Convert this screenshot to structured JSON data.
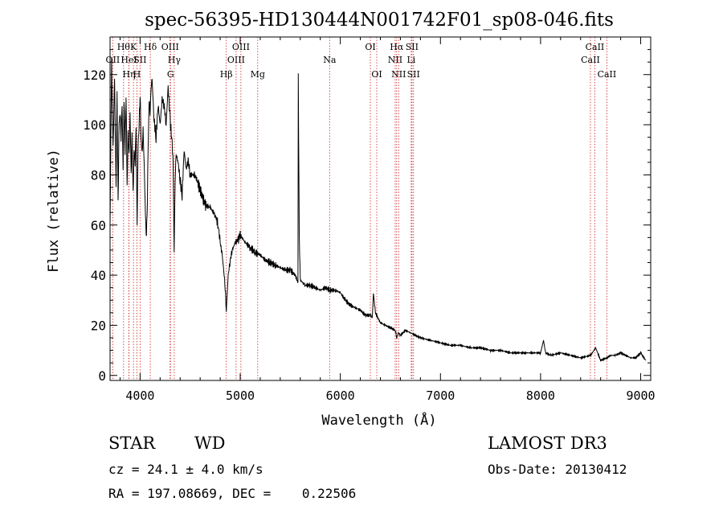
{
  "chart_data": {
    "type": "line",
    "title": "spec-56395-HD130444N001742F01_sp08-046.fits",
    "xlabel": "Wavelength (Å)",
    "ylabel": "Flux (relative)",
    "xlim": [
      3700,
      9100
    ],
    "ylim": [
      -2,
      135
    ],
    "xticks": [
      4000,
      5000,
      6000,
      7000,
      8000,
      9000
    ],
    "xtick_labels": [
      "4000",
      "5000",
      "6000",
      "7000",
      "8000",
      "9000"
    ],
    "yticks": [
      0,
      20,
      40,
      60,
      80,
      100,
      120
    ],
    "ytick_labels": [
      "0",
      "20",
      "40",
      "60",
      "80",
      "100",
      "120"
    ],
    "grid": false,
    "series": [
      {
        "name": "flux",
        "x": [
          3700,
          3715,
          3730,
          3745,
          3760,
          3770,
          3780,
          3790,
          3800,
          3810,
          3820,
          3830,
          3840,
          3850,
          3860,
          3870,
          3880,
          3890,
          3900,
          3910,
          3920,
          3930,
          3940,
          3950,
          3960,
          3970,
          3980,
          3990,
          4000,
          4010,
          4020,
          4030,
          4040,
          4050,
          4060,
          4070,
          4080,
          4090,
          4100,
          4110,
          4120,
          4140,
          4160,
          4180,
          4200,
          4220,
          4240,
          4260,
          4280,
          4300,
          4320,
          4330,
          4340,
          4350,
          4360,
          4380,
          4400,
          4420,
          4440,
          4460,
          4480,
          4500,
          4550,
          4600,
          4650,
          4700,
          4750,
          4780,
          4800,
          4820,
          4840,
          4850,
          4861,
          4870,
          4880,
          4900,
          4920,
          4950,
          4980,
          5000,
          5050,
          5100,
          5150,
          5200,
          5250,
          5300,
          5350,
          5400,
          5450,
          5500,
          5550,
          5577,
          5580,
          5590,
          5600,
          5650,
          5700,
          5750,
          5800,
          5850,
          5900,
          5950,
          6000,
          6050,
          6100,
          6150,
          6200,
          6250,
          6300,
          6320,
          6330,
          6350,
          6400,
          6450,
          6500,
          6550,
          6563,
          6580,
          6600,
          6650,
          6700,
          6750,
          6800,
          6900,
          7000,
          7100,
          7200,
          7300,
          7400,
          7500,
          7600,
          7700,
          7800,
          7900,
          8000,
          8030,
          8050,
          8100,
          8200,
          8300,
          8400,
          8500,
          8550,
          8600,
          8662,
          8700,
          8750,
          8800,
          8850,
          8900,
          8950,
          9000,
          9050
        ],
        "values": [
          60,
          125,
          90,
          118,
          75,
          112,
          68,
          100,
          105,
          95,
          108,
          82,
          110,
          90,
          112,
          75,
          96,
          88,
          105,
          80,
          95,
          72,
          90,
          85,
          100,
          60,
          92,
          100,
          113,
          95,
          88,
          98,
          85,
          70,
          55,
          62,
          90,
          110,
          105,
          115,
          118,
          102,
          95,
          108,
          100,
          110,
          108,
          100,
          115,
          102,
          92,
          85,
          50,
          78,
          88,
          85,
          78,
          72,
          90,
          82,
          86,
          80,
          80,
          74,
          68,
          67,
          64,
          60,
          53,
          48,
          40,
          35,
          26,
          32,
          40,
          46,
          50,
          53,
          54,
          56,
          53,
          51,
          49,
          48,
          46,
          45,
          44,
          43,
          42,
          42,
          40,
          37,
          119,
          55,
          38,
          36,
          36,
          35,
          34,
          35,
          34,
          34,
          33,
          30,
          28,
          27,
          26,
          24,
          24,
          23,
          33,
          25,
          21,
          20,
          19,
          18,
          15,
          17,
          16,
          18,
          17,
          16,
          15,
          14,
          13,
          12,
          12,
          11,
          11,
          10,
          10,
          9,
          9,
          9,
          9,
          14,
          9,
          8,
          9,
          8,
          7,
          8,
          11,
          6,
          7,
          8,
          8,
          9,
          8,
          7,
          7,
          9,
          6
        ]
      }
    ],
    "lines": [
      {
        "name": "O II",
        "x": 3727,
        "label": "OII",
        "row": 2
      },
      {
        "name": "H9",
        "x": 3835,
        "label": "Hθ",
        "row": 1
      },
      {
        "name": "He I",
        "x": 3889,
        "label": "HeI",
        "row": 2
      },
      {
        "name": "H eta",
        "x": 3889,
        "label": "Hη",
        "row": 3
      },
      {
        "name": "Ca K",
        "x": 3934,
        "label": "K",
        "row": 1
      },
      {
        "name": "Ca H",
        "x": 3968,
        "label": "H",
        "row": 3
      },
      {
        "name": "S II",
        "x": 4000,
        "label": "SII",
        "row": 2
      },
      {
        "name": "H delta",
        "x": 4102,
        "label": "Hδ",
        "row": 1
      },
      {
        "name": "O III",
        "x": 4300,
        "label": "OIII",
        "row": 1
      },
      {
        "name": "H gamma",
        "x": 4341,
        "label": "Hγ",
        "row": 2
      },
      {
        "name": "G band",
        "x": 4304,
        "label": "G",
        "row": 3
      },
      {
        "name": "H beta",
        "x": 4861,
        "label": "Hβ",
        "row": 3
      },
      {
        "name": "O III",
        "x": 4959,
        "label": "OIII",
        "row": 2
      },
      {
        "name": "O III",
        "x": 5007,
        "label": "OIII",
        "row": 1
      },
      {
        "name": "Mg",
        "x": 5175,
        "label": "Mg",
        "row": 3
      },
      {
        "name": "Na",
        "x": 5893,
        "label": "Na",
        "row": 2
      },
      {
        "name": "O I",
        "x": 6300,
        "label": "OI",
        "row": 1
      },
      {
        "name": "O I",
        "x": 6364,
        "label": "OI",
        "row": 3
      },
      {
        "name": "N II",
        "x": 6548,
        "label": "NII",
        "row": 2
      },
      {
        "name": "H alpha",
        "x": 6563,
        "label": "Hα",
        "row": 1
      },
      {
        "name": "N II",
        "x": 6583,
        "label": "NII",
        "row": 3
      },
      {
        "name": "Li",
        "x": 6708,
        "label": "Li",
        "row": 2
      },
      {
        "name": "S II",
        "x": 6716,
        "label": "SII",
        "row": 1
      },
      {
        "name": "S II",
        "x": 6731,
        "label": "SII",
        "row": 3
      },
      {
        "name": "Ca II",
        "x": 8498,
        "label": "CaII",
        "row": 2
      },
      {
        "name": "Ca II",
        "x": 8542,
        "label": "CaII",
        "row": 1
      },
      {
        "name": "Ca II",
        "x": 8662,
        "label": "CaII",
        "row": 3
      }
    ]
  },
  "info": {
    "object_class": "STAR",
    "subclass": "WD",
    "survey": "LAMOST DR3",
    "redshift": "cz = 24.1 ± 4.0 km/s",
    "obs_date": "Obs-Date: 20130412",
    "coords": "RA = 197.08669, DEC =    0.22506"
  },
  "colors": {
    "line_marker": "#cc2222",
    "spectrum": "#000000",
    "axes": "#000000"
  }
}
